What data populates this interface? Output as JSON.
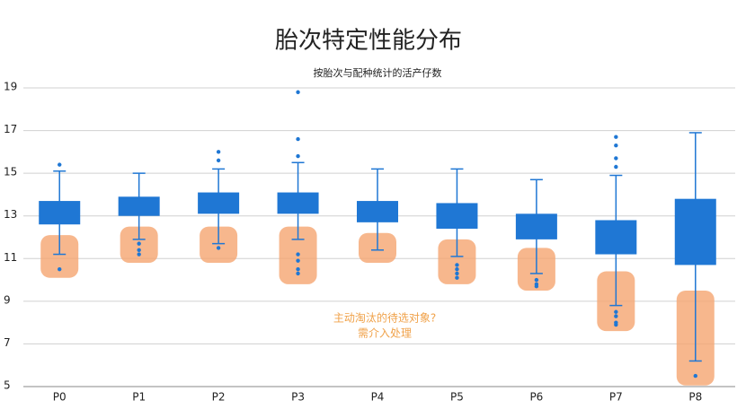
{
  "chart_data": {
    "type": "box",
    "title": "胎次特定性能分布",
    "subtitle": "按胎次与配种统计的活产仔数",
    "categories": [
      "P0",
      "P1",
      "P2",
      "P3",
      "P4",
      "P5",
      "P6",
      "P7",
      "P8"
    ],
    "color": "#1f77d4",
    "highlight_color": "#f5a571",
    "ylim": [
      5,
      19
    ],
    "yticks": [
      5,
      7,
      9,
      11,
      13,
      15,
      17,
      19
    ],
    "grid": true,
    "boxes": [
      {
        "whisker_low": 11.2,
        "q1": 12.6,
        "q3": 13.7,
        "whisker_high": 15.1,
        "outliers": [
          15.4,
          10.5
        ],
        "highlight": [
          10.1,
          12.1
        ]
      },
      {
        "whisker_low": 11.9,
        "q1": 13.0,
        "q3": 13.9,
        "whisker_high": 15.0,
        "outliers": [
          11.7,
          11.4,
          11.2
        ],
        "highlight": [
          10.8,
          12.5
        ]
      },
      {
        "whisker_low": 11.7,
        "q1": 13.1,
        "q3": 14.1,
        "whisker_high": 15.2,
        "outliers": [
          16.0,
          15.6,
          11.5
        ],
        "highlight": [
          10.8,
          12.5
        ]
      },
      {
        "whisker_low": 11.9,
        "q1": 13.1,
        "q3": 14.1,
        "whisker_high": 15.5,
        "outliers": [
          18.8,
          16.6,
          15.8,
          11.2,
          10.9,
          10.5,
          10.3
        ],
        "highlight": [
          9.8,
          12.5
        ]
      },
      {
        "whisker_low": 11.4,
        "q1": 12.7,
        "q3": 13.7,
        "whisker_high": 15.2,
        "outliers": [],
        "highlight": [
          10.8,
          12.2
        ]
      },
      {
        "whisker_low": 11.1,
        "q1": 12.4,
        "q3": 13.6,
        "whisker_high": 15.2,
        "outliers": [
          10.7,
          10.5,
          10.3,
          10.1
        ],
        "highlight": [
          9.8,
          11.9
        ]
      },
      {
        "whisker_low": 10.3,
        "q1": 11.9,
        "q3": 13.1,
        "whisker_high": 14.7,
        "outliers": [
          10.0,
          9.8,
          9.7
        ],
        "highlight": [
          9.5,
          11.5
        ]
      },
      {
        "whisker_low": 8.8,
        "q1": 11.2,
        "q3": 12.8,
        "whisker_high": 14.9,
        "outliers": [
          16.7,
          16.3,
          15.7,
          15.3,
          8.5,
          8.3,
          8.0,
          7.9
        ],
        "highlight": [
          7.6,
          10.4
        ]
      },
      {
        "whisker_low": 6.2,
        "q1": 10.7,
        "q3": 13.8,
        "whisker_high": 16.9,
        "outliers": [
          5.5
        ],
        "highlight": [
          5.05,
          9.5
        ]
      }
    ],
    "annotation": [
      "主动淘汰的待选对象?",
      "需介入处理"
    ],
    "annotation_color": "#f0a24a"
  }
}
